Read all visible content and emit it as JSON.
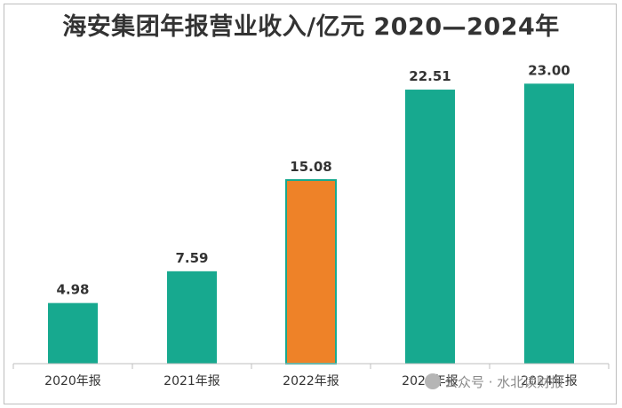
{
  "chart_data": {
    "type": "bar",
    "title": "海安集团年报营业收入/亿元 2020—2024年",
    "categories": [
      "2020年报",
      "2021年报",
      "2022年报",
      "2023年报",
      "2024年报"
    ],
    "values": [
      4.98,
      7.59,
      15.08,
      22.51,
      23.0
    ],
    "value_labels": [
      "4.98",
      "7.59",
      "15.08",
      "22.51",
      "23.00"
    ],
    "colors": [
      "#17a98f",
      "#17a98f",
      "#ee8228",
      "#17a98f",
      "#17a98f"
    ],
    "highlight_color": "#ee8228",
    "base_color": "#17a98f",
    "ylim": [
      0,
      25.5
    ],
    "grid": false,
    "legend": "none"
  },
  "watermark": {
    "text": "公众号 · 水北读财报"
  }
}
